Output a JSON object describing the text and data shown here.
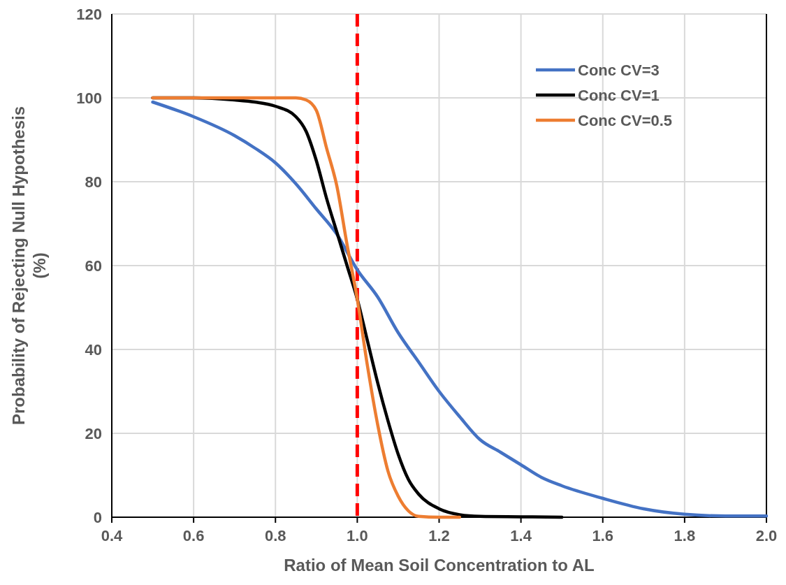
{
  "chart_data": {
    "type": "line",
    "xlabel": "Ratio of Mean Soil Concentration to AL",
    "ylabel": "Probability of Rejecting Null Hypothesis\n(%)",
    "xlim": [
      0.4,
      2.0
    ],
    "xticks": [
      0.4,
      0.6,
      0.8,
      {
        "value": 1.0,
        "label": "1.0"
      },
      1.2,
      1.4,
      1.6,
      1.8,
      {
        "value": 2.0,
        "label": "2.0"
      }
    ],
    "ylim": [
      0,
      120
    ],
    "yticks": [
      0,
      20,
      40,
      60,
      80,
      100,
      120
    ],
    "grid": true,
    "legend": "top right",
    "line_style": "solid",
    "ref_lines": [
      {
        "axis": "x",
        "value": 1.0,
        "color": "#ff0000",
        "line_style": "dashed"
      }
    ],
    "series": [
      {
        "name": "Conc CV=3",
        "color": "#4472c4",
        "x": [
          0.5,
          0.6,
          0.7,
          0.75,
          0.8,
          0.85,
          0.9,
          0.95,
          1.0,
          1.05,
          1.1,
          1.15,
          1.2,
          1.25,
          1.3,
          1.35,
          1.4,
          1.45,
          1.5,
          1.6,
          1.7,
          1.8,
          1.9,
          2.0
        ],
        "values": [
          99,
          95.5,
          91,
          88,
          84.5,
          79.5,
          73.5,
          67.5,
          59,
          52.5,
          44,
          37,
          30,
          24,
          18.5,
          15.5,
          12.5,
          9.5,
          7.5,
          4.5,
          2,
          0.7,
          0.3,
          0.3
        ]
      },
      {
        "name": "Conc CV=1",
        "color": "#000000",
        "x": [
          0.5,
          0.6,
          0.7,
          0.75,
          0.8,
          0.85,
          0.875,
          0.9,
          0.925,
          0.95,
          0.975,
          1.0,
          1.025,
          1.05,
          1.075,
          1.1,
          1.125,
          1.15,
          1.2,
          1.25,
          1.3,
          1.4,
          1.5
        ],
        "values": [
          100,
          100,
          99.5,
          99,
          98,
          95.5,
          92,
          85,
          76,
          68,
          60,
          52,
          42,
          32,
          23,
          15,
          9,
          5.5,
          2,
          0.6,
          0.2,
          0.1,
          0
        ]
      },
      {
        "name": "Conc CV=0.5",
        "color": "#ed7d31",
        "x": [
          0.5,
          0.6,
          0.7,
          0.8,
          0.85,
          0.875,
          0.9,
          0.925,
          0.95,
          0.975,
          1.0,
          1.025,
          1.05,
          1.075,
          1.1,
          1.125,
          1.15,
          1.2,
          1.25
        ],
        "values": [
          100,
          100,
          100,
          100,
          100,
          99.5,
          97,
          88,
          79,
          65,
          52,
          36,
          22,
          11,
          5,
          1.5,
          0.2,
          0,
          0
        ]
      }
    ]
  }
}
